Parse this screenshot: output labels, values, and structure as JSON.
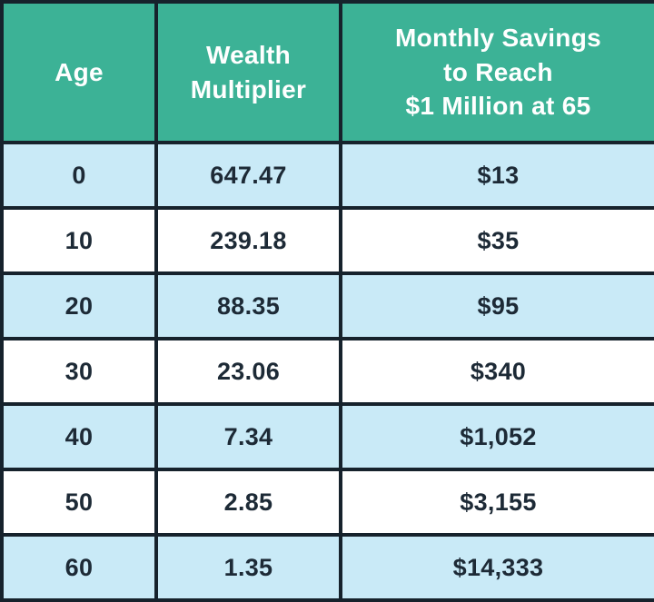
{
  "colors": {
    "header_bg": "#3cb296",
    "header_text": "#ffffff",
    "row_alt_bg": "#c9eaf7",
    "row_bg": "#ffffff",
    "border": "#16222c",
    "cell_text": "#1d2a36"
  },
  "table": {
    "columns": [
      {
        "label": "Age"
      },
      {
        "label": "Wealth\nMultiplier"
      },
      {
        "label": "Monthly Savings\nto Reach\n$1 Million at 65"
      }
    ],
    "rows": [
      {
        "age": "0",
        "multiplier": "647.47",
        "savings": "$13"
      },
      {
        "age": "10",
        "multiplier": "239.18",
        "savings": "$35"
      },
      {
        "age": "20",
        "multiplier": "88.35",
        "savings": "$95"
      },
      {
        "age": "30",
        "multiplier": "23.06",
        "savings": "$340"
      },
      {
        "age": "40",
        "multiplier": "7.34",
        "savings": "$1,052"
      },
      {
        "age": "50",
        "multiplier": "2.85",
        "savings": "$3,155"
      },
      {
        "age": "60",
        "multiplier": "1.35",
        "savings": "$14,333"
      }
    ]
  },
  "chart_data": {
    "type": "table",
    "title": "Monthly Savings to Reach $1 Million at 65",
    "categories": [
      "Age",
      "Wealth Multiplier",
      "Monthly Savings to Reach $1 Million at 65"
    ],
    "series": [
      {
        "name": "Age",
        "values": [
          0,
          10,
          20,
          30,
          40,
          50,
          60
        ]
      },
      {
        "name": "Wealth Multiplier",
        "values": [
          647.47,
          239.18,
          88.35,
          23.06,
          7.34,
          2.85,
          1.35
        ]
      },
      {
        "name": "Monthly Savings to Reach $1 Million at 65",
        "values": [
          13,
          35,
          95,
          340,
          1052,
          3155,
          14333
        ]
      }
    ]
  }
}
